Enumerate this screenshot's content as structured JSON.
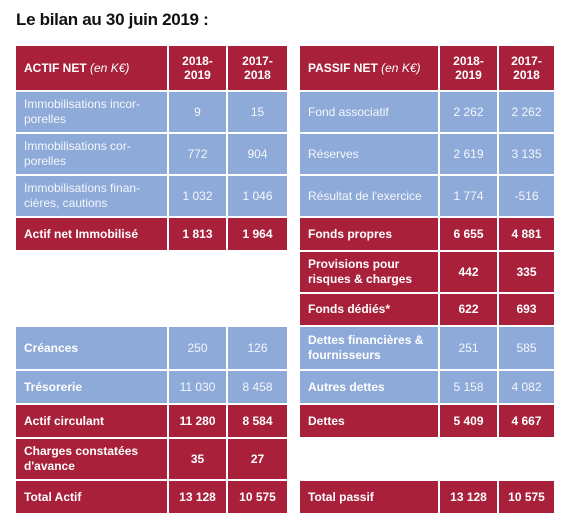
{
  "title": "Le bilan au 30 juin 2019 :",
  "actif": {
    "header": {
      "label": "ACTIF NET",
      "unit": "(en K€)",
      "col1": "2018-\n2019",
      "col1_a": "2018-",
      "col1_b": "2019",
      "col2_a": "2017-",
      "col2_b": "2018"
    },
    "rows": [
      {
        "label": "Immobilisations incor-porelles",
        "l1": "Immobilisations incor-",
        "l2": "porelles",
        "v1": "9",
        "v2": "15"
      },
      {
        "label": "Immobilisations cor-porelles",
        "l1": "Immobilisations cor-",
        "l2": "porelles",
        "v1": "772",
        "v2": "904"
      },
      {
        "label": "Immobilisations financières, cautions",
        "l1": "Immobilisations finan-",
        "l2": "cières, cautions",
        "v1": "1 032",
        "v2": "1 046"
      },
      {
        "label": "Actif net Immobilisé",
        "v1": "1 813",
        "v2": "1 964"
      },
      {
        "label": "Créances",
        "v1": "250",
        "v2": "126"
      },
      {
        "label": "Trésorerie",
        "v1": "11 030",
        "v2": "8 458"
      },
      {
        "label": "Actif circulant",
        "v1": "11 280",
        "v2": "8 584"
      },
      {
        "label": "Charges constatées d'avance",
        "l1": "Charges constatées",
        "l2": "d'avance",
        "v1": "35",
        "v2": "27"
      },
      {
        "label": "Total Actif",
        "v1": "13 128",
        "v2": "10 575"
      }
    ]
  },
  "passif": {
    "header": {
      "label": "PASSIF NET",
      "unit": "(en K€)",
      "col1_a": "2018-",
      "col1_b": "2019",
      "col2_a": "2017-",
      "col2_b": "2018"
    },
    "rows": [
      {
        "label": "Fond associatif",
        "v1": "2 262",
        "v2": "2 262"
      },
      {
        "label": "Réserves",
        "v1": "2 619",
        "v2": "3 135"
      },
      {
        "label": "Résultat de l'exercice",
        "v1": "1 774",
        "v2": "-516"
      },
      {
        "label": "Fonds propres",
        "v1": "6 655",
        "v2": "4 881"
      },
      {
        "label": "Provisions pour risques & charges",
        "l1": "Provisions pour",
        "l2": "risques & charges",
        "v1": "442",
        "v2": "335"
      },
      {
        "label": "Fonds dédiés*",
        "v1": "622",
        "v2": "693"
      },
      {
        "label": "Dettes financières & fournisseurs",
        "l1": "Dettes financières &",
        "l2": "fournisseurs",
        "v1": "251",
        "v2": "585"
      },
      {
        "label": "Autres dettes",
        "v1": "5 158",
        "v2": "4 082"
      },
      {
        "label": "Dettes",
        "v1": "5 409",
        "v2": "4 667"
      },
      {
        "label": "Total passif",
        "v1": "13 128",
        "v2": "10 575"
      }
    ]
  },
  "colors": {
    "red": "#a8203a",
    "blue": "#8eaad8"
  }
}
